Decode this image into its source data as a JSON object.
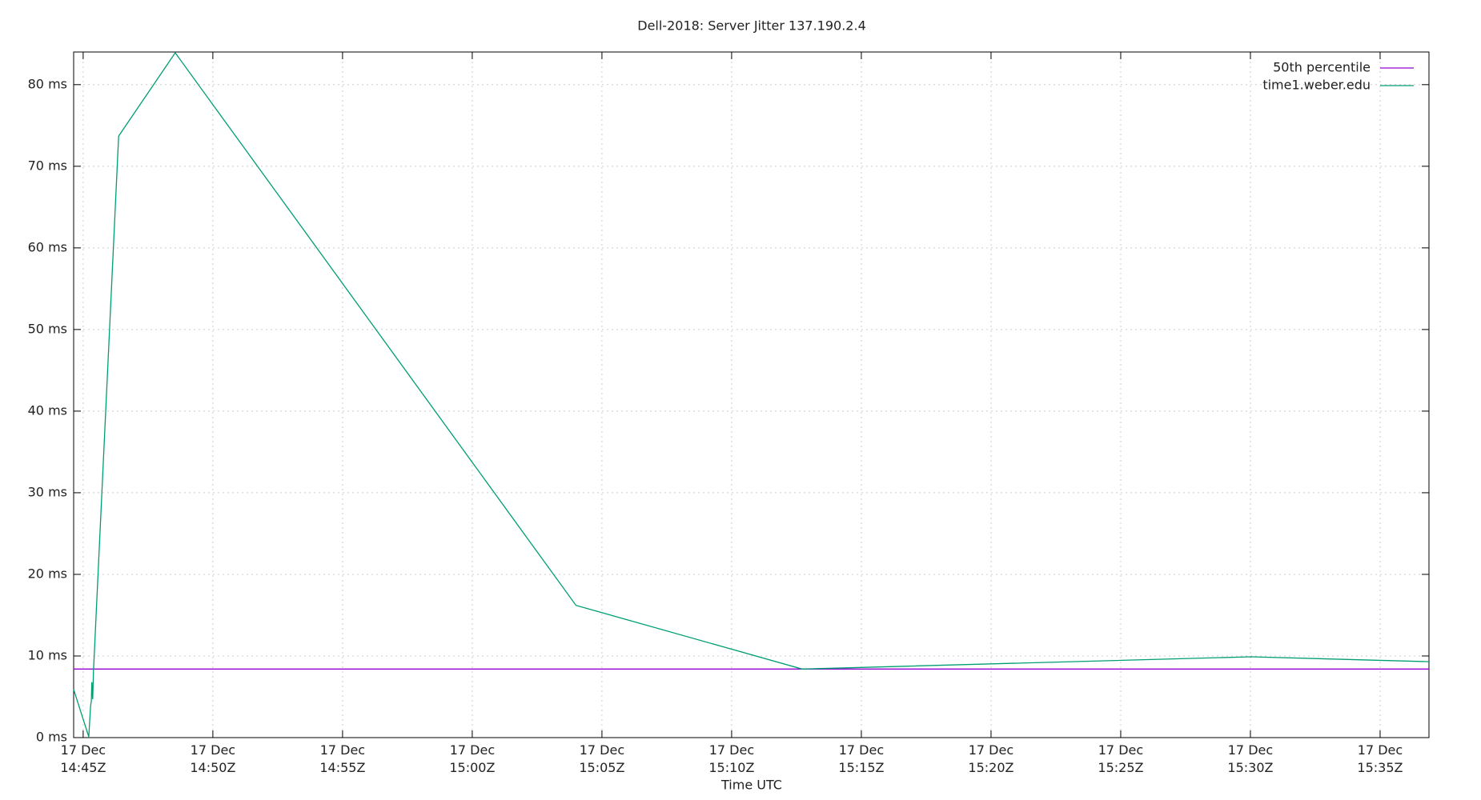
{
  "chart_data": {
    "type": "line",
    "title": "Dell-2018: Server Jitter 137.190.2.4",
    "x_label": "Time UTC",
    "xlim": [
      "14:44:38",
      "15:36:53"
    ],
    "xticks": [
      {
        "value": "14:45:00",
        "label": "17 Dec 14:45Z"
      },
      {
        "value": "14:50:00",
        "label": "17 Dec 14:50Z"
      },
      {
        "value": "14:55:00",
        "label": "17 Dec 14:55Z"
      },
      {
        "value": "15:00:00",
        "label": "17 Dec 15:00Z"
      },
      {
        "value": "15:05:00",
        "label": "17 Dec 15:05Z"
      },
      {
        "value": "15:10:00",
        "label": "17 Dec 15:10Z"
      },
      {
        "value": "15:15:00",
        "label": "17 Dec 15:15Z"
      },
      {
        "value": "15:20:00",
        "label": "17 Dec 15:20Z"
      },
      {
        "value": "15:25:00",
        "label": "17 Dec 15:25Z"
      },
      {
        "value": "15:30:00",
        "label": "17 Dec 15:30Z"
      },
      {
        "value": "15:35:00",
        "label": "17 Dec 15:35Z"
      }
    ],
    "ylim": [
      0,
      84
    ],
    "yticks": [
      {
        "value": 0,
        "label": "0 ms"
      },
      {
        "value": 10,
        "label": "10 ms"
      },
      {
        "value": 20,
        "label": "20 ms"
      },
      {
        "value": 30,
        "label": "30 ms"
      },
      {
        "value": 40,
        "label": "40 ms"
      },
      {
        "value": 50,
        "label": "50 ms"
      },
      {
        "value": 60,
        "label": "60 ms"
      },
      {
        "value": 70,
        "label": "70 ms"
      },
      {
        "value": 80,
        "label": "80 ms"
      }
    ],
    "grid": true,
    "legend": "top-right",
    "series": [
      {
        "name": "50th percentile",
        "color": "#9400d3",
        "x": [
          "14:44:38",
          "15:36:53"
        ],
        "values": [
          8.4,
          8.4
        ]
      },
      {
        "name": "time1.weber.edu",
        "color": "#009e73",
        "x": [
          "14:44:38",
          "14:45:13",
          "14:45:17",
          "14:45:19",
          "14:45:20",
          "14:45:22",
          "14:45:24",
          "14:46:22",
          "14:48:33",
          "15:04:00",
          "15:12:43",
          "15:30:01",
          "15:36:53"
        ],
        "values": [
          5.9,
          0.1,
          3.8,
          4.5,
          6.8,
          4.7,
          8.2,
          73.7,
          83.9,
          16.2,
          8.4,
          9.9,
          9.3
        ]
      }
    ]
  }
}
